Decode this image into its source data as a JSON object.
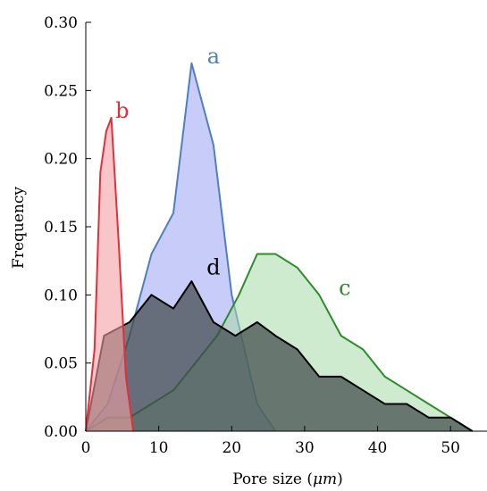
{
  "chart_data": {
    "type": "area",
    "xlabel_prefix": "Pore size (",
    "xlabel_unit": "μm",
    "xlabel_suffix": ")",
    "ylabel": "Frequency",
    "xlim": [
      0,
      55
    ],
    "ylim": [
      0,
      0.3
    ],
    "xticks": [
      "0",
      "10",
      "20",
      "30",
      "40",
      "50"
    ],
    "yticks": [
      "0.00",
      "0.05",
      "0.10",
      "0.15",
      "0.20",
      "0.25",
      "0.30"
    ],
    "series": [
      {
        "name": "a",
        "stroke": "#4f7fc0",
        "fill": "#aab0f5",
        "fill_opacity": 0.65,
        "points": [
          [
            0,
            0
          ],
          [
            3,
            0.02
          ],
          [
            6,
            0.07
          ],
          [
            9,
            0.13
          ],
          [
            12,
            0.16
          ],
          [
            14.5,
            0.27
          ],
          [
            17.5,
            0.21
          ],
          [
            20,
            0.1
          ],
          [
            23.5,
            0.02
          ],
          [
            26,
            0
          ]
        ],
        "label_at": [
          17.5,
          0.27
        ]
      },
      {
        "name": "c",
        "stroke": "#2e8b2e",
        "fill": "#a8daa8",
        "fill_opacity": 0.55,
        "points": [
          [
            0,
            0
          ],
          [
            3,
            0.01
          ],
          [
            6,
            0.01
          ],
          [
            9,
            0.02
          ],
          [
            12,
            0.03
          ],
          [
            15,
            0.05
          ],
          [
            18,
            0.07
          ],
          [
            21,
            0.1
          ],
          [
            23.5,
            0.13
          ],
          [
            26,
            0.13
          ],
          [
            29,
            0.12
          ],
          [
            32,
            0.1
          ],
          [
            35,
            0.07
          ],
          [
            38,
            0.06
          ],
          [
            41,
            0.04
          ],
          [
            44,
            0.03
          ],
          [
            47,
            0.02
          ],
          [
            50,
            0.01
          ],
          [
            53,
            0
          ]
        ],
        "label_at": [
          35.5,
          0.1
        ]
      },
      {
        "name": "d",
        "stroke": "#000000",
        "fill": "#3f4a4a",
        "fill_opacity": 0.72,
        "points": [
          [
            0,
            0
          ],
          [
            2.5,
            0.07
          ],
          [
            6,
            0.08
          ],
          [
            9,
            0.1
          ],
          [
            12,
            0.09
          ],
          [
            14.5,
            0.11
          ],
          [
            17.5,
            0.08
          ],
          [
            20.5,
            0.07
          ],
          [
            23.5,
            0.08
          ],
          [
            26,
            0.07
          ],
          [
            29,
            0.06
          ],
          [
            32,
            0.04
          ],
          [
            35,
            0.04
          ],
          [
            38,
            0.03
          ],
          [
            41,
            0.02
          ],
          [
            44,
            0.02
          ],
          [
            47,
            0.01
          ],
          [
            50,
            0.01
          ],
          [
            53,
            0
          ]
        ],
        "label_at": [
          17.5,
          0.115
        ]
      },
      {
        "name": "b",
        "stroke": "#e0303a",
        "fill": "#f4a0a4",
        "fill_opacity": 0.6,
        "points": [
          [
            0,
            0
          ],
          [
            1.2,
            0.06
          ],
          [
            2,
            0.19
          ],
          [
            2.8,
            0.22
          ],
          [
            3.5,
            0.23
          ],
          [
            4.5,
            0.14
          ],
          [
            5.5,
            0.04
          ],
          [
            6.5,
            0
          ]
        ],
        "label_at": [
          5,
          0.23
        ]
      }
    ]
  }
}
